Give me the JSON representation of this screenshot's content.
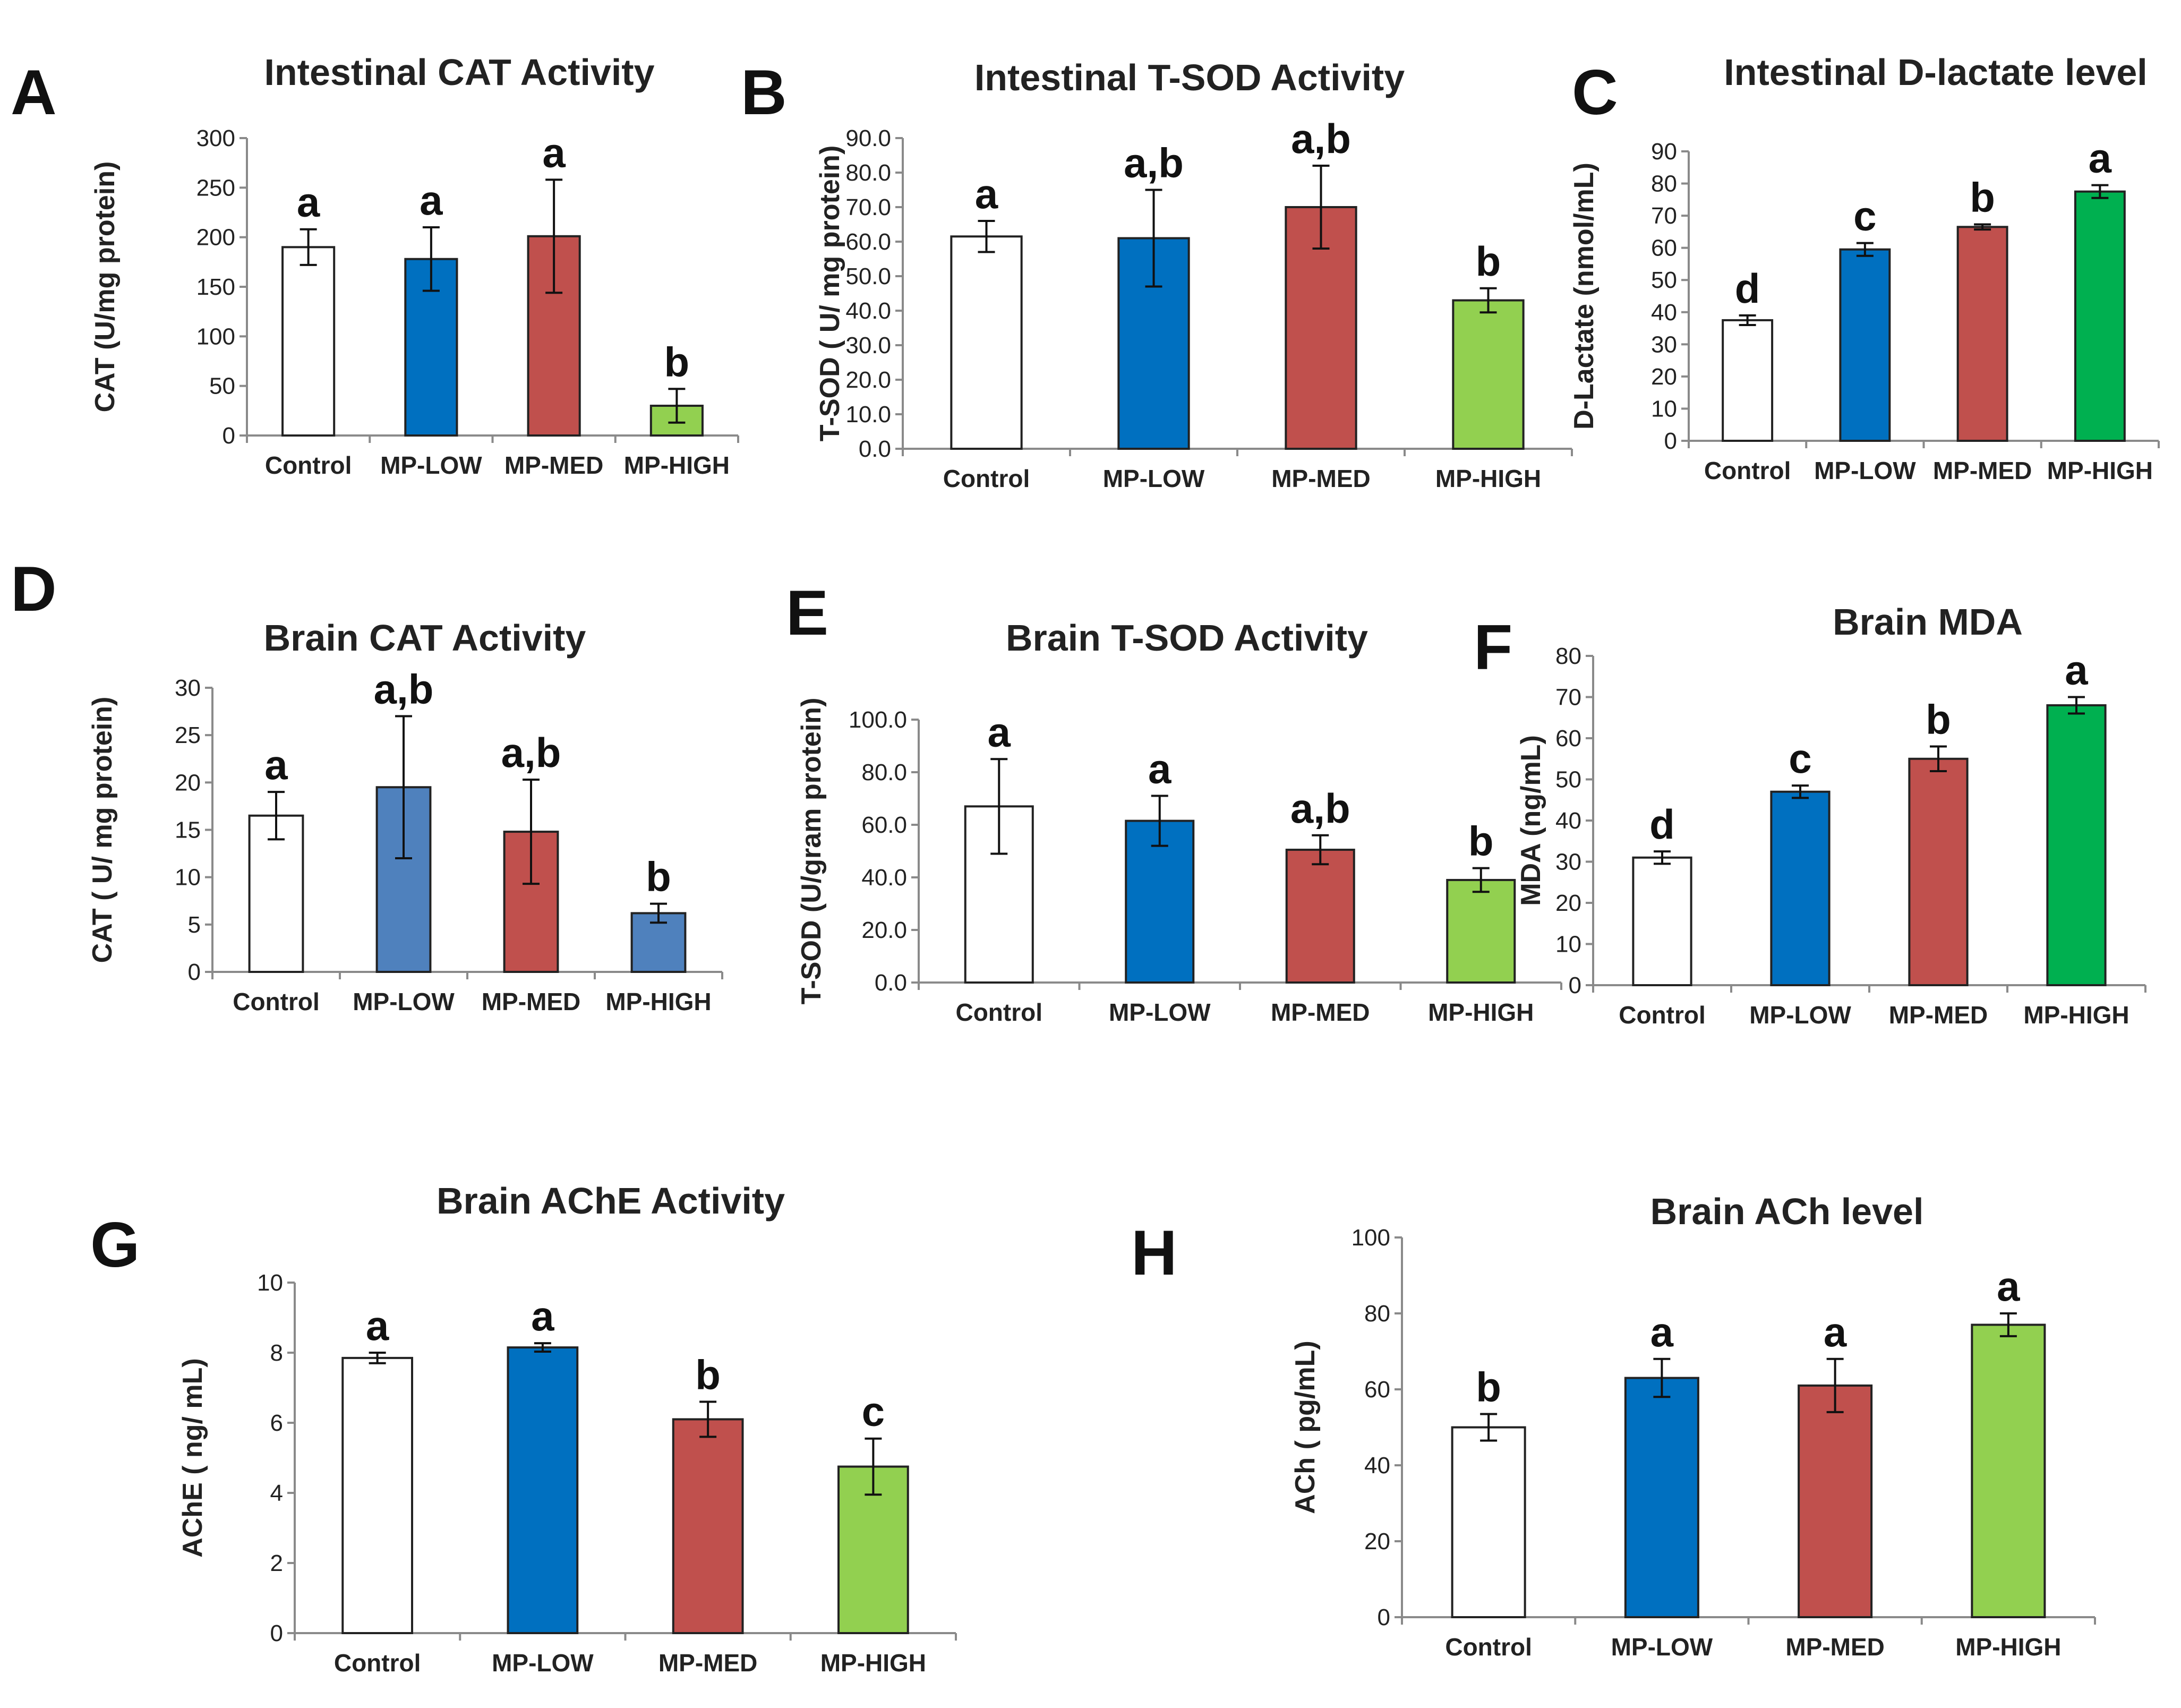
{
  "chart_data": [
    {
      "panel": "A",
      "type": "bar",
      "title": "Intestinal CAT Activity",
      "ylabel": "CAT (U/mg protein)",
      "categories": [
        "Control",
        "MP-LOW",
        "MP-MED",
        "MP-HIGH"
      ],
      "values": [
        190,
        178,
        201,
        30
      ],
      "errors": [
        18,
        32,
        57,
        17
      ],
      "letters": [
        "a",
        "a",
        "a",
        "b"
      ],
      "colors": [
        "#ffffff",
        "#0070c0",
        "#c0504d",
        "#92d050"
      ],
      "ylim": [
        0,
        300
      ],
      "ticks": [
        "0",
        "50",
        "100",
        "150",
        "200",
        "250",
        "300"
      ]
    },
    {
      "panel": "B",
      "type": "bar",
      "title": "Intestinal T-SOD Activity",
      "ylabel": "T-SOD ( U/ mg protein)",
      "categories": [
        "Control",
        "MP-LOW",
        "MP-MED",
        "MP-HIGH"
      ],
      "values": [
        61.5,
        61,
        70,
        43
      ],
      "errors": [
        4.5,
        14,
        12,
        3.5
      ],
      "letters": [
        "a",
        "a,b",
        "a,b",
        "b"
      ],
      "colors": [
        "#ffffff",
        "#0070c0",
        "#c0504d",
        "#92d050"
      ],
      "ylim": [
        0,
        90
      ],
      "ticks": [
        "0.0",
        "10.0",
        "20.0",
        "30.0",
        "40.0",
        "50.0",
        "60.0",
        "70.0",
        "80.0",
        "90.0"
      ]
    },
    {
      "panel": "C",
      "type": "bar",
      "title": "Intestinal D-lactate level",
      "ylabel": "D-Lactate (nmol/mL)",
      "categories": [
        "Control",
        "MP-LOW",
        "MP-MED",
        "MP-HIGH"
      ],
      "values": [
        37.5,
        59.5,
        66.5,
        77.5
      ],
      "errors": [
        1.5,
        2,
        0.8,
        2
      ],
      "letters": [
        "d",
        "c",
        "b",
        "a"
      ],
      "colors": [
        "#ffffff",
        "#0070c0",
        "#c0504d",
        "#00b050"
      ],
      "ylim": [
        0,
        90
      ],
      "ticks": [
        "0",
        "10",
        "20",
        "30",
        "40",
        "50",
        "60",
        "70",
        "80",
        "90"
      ]
    },
    {
      "panel": "D",
      "type": "bar",
      "title": "Brain CAT Activity",
      "ylabel": "CAT ( U/ mg protein)",
      "categories": [
        "Control",
        "MP-LOW",
        "MP-MED",
        "MP-HIGH"
      ],
      "values": [
        16.5,
        19.5,
        14.8,
        6.2
      ],
      "errors": [
        2.5,
        7.5,
        5.5,
        1
      ],
      "letters": [
        "a",
        "a,b",
        "a,b",
        "b"
      ],
      "colors": [
        "#ffffff",
        "#4f81bd",
        "#c0504d",
        "#4f81bd"
      ],
      "ylim": [
        0,
        30
      ],
      "ticks": [
        "0",
        "5",
        "10",
        "15",
        "20",
        "25",
        "30"
      ]
    },
    {
      "panel": "E",
      "type": "bar",
      "title": "Brain T-SOD Activity",
      "ylabel": "T-SOD (U/gram protein)",
      "categories": [
        "Control",
        "MP-LOW",
        "MP-MED",
        "MP-HIGH"
      ],
      "values": [
        67,
        61.5,
        50.5,
        39
      ],
      "errors": [
        18,
        9.5,
        5.5,
        4.5
      ],
      "letters": [
        "a",
        "a",
        "a,b",
        "b"
      ],
      "colors": [
        "#ffffff",
        "#0070c0",
        "#c0504d",
        "#92d050"
      ],
      "ylim": [
        0,
        100
      ],
      "ticks": [
        "0.0",
        "20.0",
        "40.0",
        "60.0",
        "80.0",
        "100.0"
      ]
    },
    {
      "panel": "F",
      "type": "bar",
      "title": "Brain MDA",
      "ylabel": "MDA (ng/mL)",
      "categories": [
        "Control",
        "MP-LOW",
        "MP-MED",
        "MP-HIGH"
      ],
      "values": [
        31,
        47,
        55,
        68
      ],
      "errors": [
        1.5,
        1.5,
        3,
        2
      ],
      "letters": [
        "d",
        "c",
        "b",
        "a"
      ],
      "colors": [
        "#ffffff",
        "#0070c0",
        "#c0504d",
        "#00b050"
      ],
      "ylim": [
        0,
        80
      ],
      "ticks": [
        "0",
        "10",
        "20",
        "30",
        "40",
        "50",
        "60",
        "70",
        "80"
      ]
    },
    {
      "panel": "G",
      "type": "bar",
      "title": "Brain AChE Activity",
      "ylabel": "AChE ( ng/ mL)",
      "categories": [
        "Control",
        "MP-LOW",
        "MP-MED",
        "MP-HIGH"
      ],
      "values": [
        7.85,
        8.15,
        6.1,
        4.75
      ],
      "errors": [
        0.15,
        0.12,
        0.5,
        0.8
      ],
      "letters": [
        "a",
        "a",
        "b",
        "c"
      ],
      "colors": [
        "#ffffff",
        "#0070c0",
        "#c0504d",
        "#92d050"
      ],
      "ylim": [
        0,
        10
      ],
      "ticks": [
        "0",
        "2",
        "4",
        "6",
        "8",
        "10"
      ]
    },
    {
      "panel": "H",
      "type": "bar",
      "title": "Brain ACh level",
      "ylabel": "ACh ( pg/mL)",
      "categories": [
        "Control",
        "MP-LOW",
        "MP-MED",
        "MP-HIGH"
      ],
      "values": [
        50,
        63,
        61,
        77
      ],
      "errors": [
        3.5,
        5,
        7,
        3
      ],
      "letters": [
        "b",
        "a",
        "a",
        "a"
      ],
      "colors": [
        "#ffffff",
        "#0070c0",
        "#c0504d",
        "#92d050"
      ],
      "ylim": [
        0,
        100
      ],
      "ticks": [
        "0",
        "20",
        "40",
        "60",
        "80",
        "100"
      ]
    }
  ]
}
